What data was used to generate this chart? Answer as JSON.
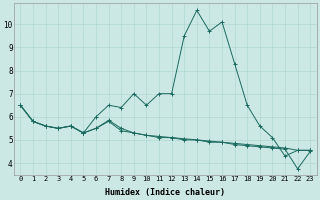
{
  "title": "",
  "xlabel": "Humidex (Indice chaleur)",
  "xlim": [
    -0.5,
    23.5
  ],
  "ylim": [
    3.5,
    10.9
  ],
  "bg_color": "#cce8e4",
  "grid_color": "#b0d8d0",
  "line_color": "#1a6a60",
  "x_ticks": [
    0,
    1,
    2,
    3,
    4,
    5,
    6,
    7,
    8,
    9,
    10,
    11,
    12,
    13,
    14,
    15,
    16,
    17,
    18,
    19,
    20,
    21,
    22,
    23
  ],
  "x_tick_labels": [
    "0",
    "1",
    "2",
    "3",
    "4",
    "5",
    "6",
    "7",
    "8",
    "9",
    "10",
    "11",
    "12",
    "13",
    "14",
    "15",
    "16",
    "17",
    "18",
    "19",
    "20",
    "21",
    "22",
    "23"
  ],
  "yticks": [
    4,
    5,
    6,
    7,
    8,
    9,
    10
  ],
  "series": [
    {
      "x": [
        0,
        1,
        2,
        3,
        4,
        5,
        6,
        7,
        8,
        9,
        10,
        11,
        12,
        13,
        14,
        15,
        16,
        17,
        18,
        19,
        20,
        21,
        22,
        23
      ],
      "y": [
        6.5,
        5.8,
        5.6,
        5.5,
        5.6,
        5.3,
        6.0,
        6.5,
        6.4,
        7.0,
        6.5,
        7.0,
        7.0,
        9.5,
        10.6,
        9.7,
        10.1,
        8.3,
        6.5,
        5.6,
        5.1,
        4.3,
        4.55,
        4.55
      ]
    },
    {
      "x": [
        0,
        1,
        2,
        3,
        4,
        5,
        6,
        7,
        8,
        9,
        10,
        11,
        12,
        13,
        14,
        15,
        16,
        17,
        18,
        19,
        20,
        21,
        22,
        23
      ],
      "y": [
        6.5,
        5.8,
        5.6,
        5.5,
        5.6,
        5.3,
        5.5,
        5.8,
        5.4,
        5.3,
        5.2,
        5.15,
        5.1,
        5.05,
        5.0,
        4.95,
        4.9,
        4.85,
        4.8,
        4.75,
        4.7,
        4.65,
        4.55,
        4.55
      ]
    },
    {
      "x": [
        0,
        1,
        2,
        3,
        4,
        5,
        6,
        7,
        8,
        9,
        10,
        11,
        12,
        13,
        14,
        15,
        16,
        17,
        18,
        19,
        20,
        21,
        22,
        23
      ],
      "y": [
        6.5,
        5.8,
        5.6,
        5.5,
        5.6,
        5.3,
        5.5,
        5.85,
        5.5,
        5.3,
        5.2,
        5.1,
        5.1,
        5.0,
        5.0,
        4.9,
        4.9,
        4.8,
        4.75,
        4.7,
        4.65,
        4.6,
        3.75,
        4.5
      ]
    }
  ],
  "xlabel_fontsize": 6,
  "tick_fontsize": 5,
  "linewidth": 0.7,
  "markersize": 2.5,
  "marker_lw": 0.7
}
